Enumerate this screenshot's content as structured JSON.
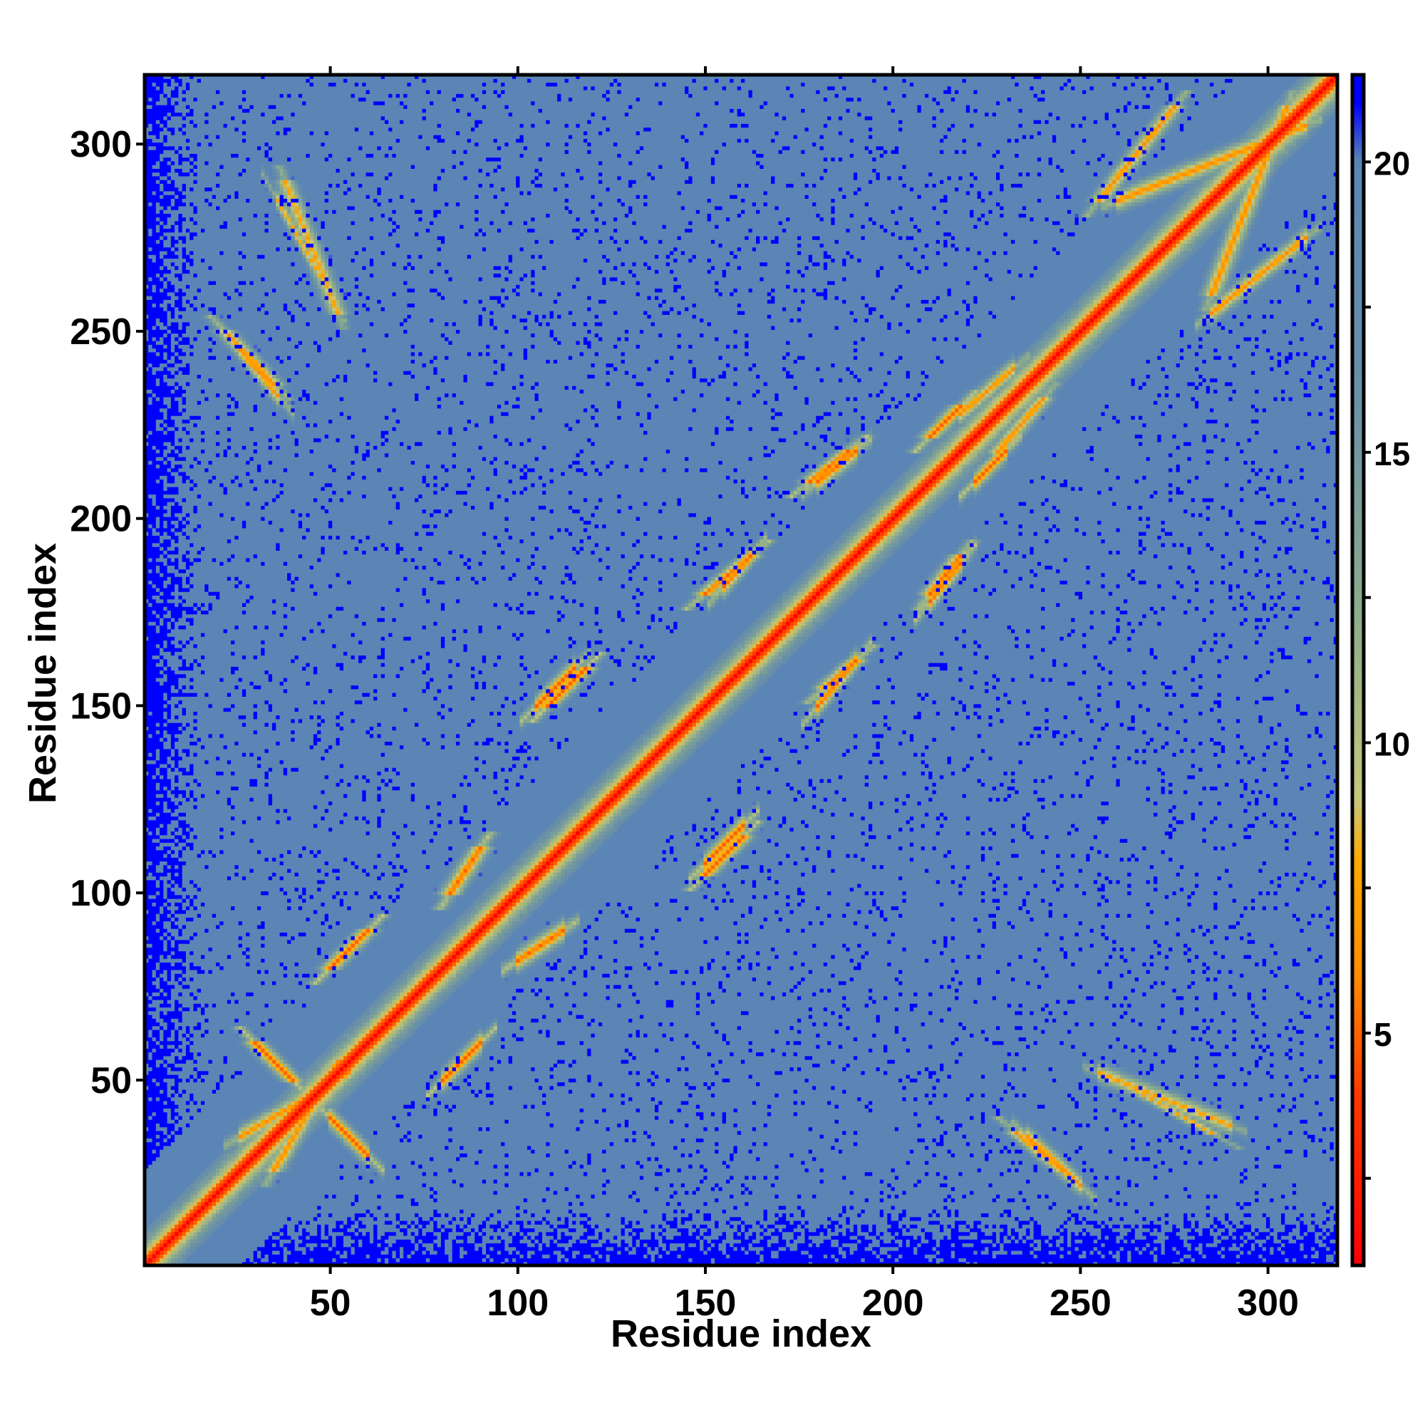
{
  "chart_data": {
    "type": "heatmap",
    "title": "",
    "xlabel": "Residue index",
    "ylabel": "Residue index",
    "n_residues": 318,
    "xlim": [
      0.5,
      318.5
    ],
    "ylim": [
      0.5,
      318.5
    ],
    "x_ticks": [
      50,
      100,
      150,
      200,
      250,
      300
    ],
    "x_tick_labels": [
      "50",
      "100",
      "150",
      "200",
      "250",
      "300"
    ],
    "y_ticks": [
      50,
      100,
      150,
      200,
      250,
      300
    ],
    "y_tick_labels": [
      "50",
      "100",
      "150",
      "200",
      "250",
      "300"
    ],
    "top_ticks": [
      50,
      100,
      150,
      200,
      250,
      300
    ],
    "colorbar": {
      "range": [
        1,
        21.5
      ],
      "ticks": [
        5,
        10,
        15,
        20
      ],
      "tick_labels": [
        "5",
        "10",
        "15",
        "20"
      ],
      "color_stops": [
        {
          "value": 1,
          "color": "#ff0000"
        },
        {
          "value": 4,
          "color": "#ff3a00"
        },
        {
          "value": 6,
          "color": "#ff8c00"
        },
        {
          "value": 8,
          "color": "#ffaa00"
        },
        {
          "value": 9,
          "color": "#c7c77a"
        },
        {
          "value": 12,
          "color": "#8fae8a"
        },
        {
          "value": 16,
          "color": "#6a90a8"
        },
        {
          "value": 20,
          "color": "#5b85b5"
        },
        {
          "value": 21,
          "color": "#0000ff"
        }
      ]
    },
    "grid": false,
    "diagonal_value": 1,
    "contact_bands": [
      {
        "i": [
          26,
          36
        ],
        "j": [
          233,
          245
        ],
        "dir": "anti",
        "value": 6
      },
      {
        "i": [
          26,
          55
        ],
        "j": [
          35,
          52
        ],
        "dir": "par",
        "value": 6
      },
      {
        "i": [
          50,
          60
        ],
        "j": [
          30,
          40
        ],
        "dir": "anti",
        "value": 5
      },
      {
        "i": [
          80,
          90
        ],
        "j": [
          50,
          60
        ],
        "dir": "par",
        "value": 5
      },
      {
        "i": [
          100,
          112
        ],
        "j": [
          82,
          90
        ],
        "dir": "par",
        "value": 5
      },
      {
        "i": [
          150,
          160
        ],
        "j": [
          108,
          118
        ],
        "dir": "par",
        "value": 5
      },
      {
        "i": [
          105,
          115
        ],
        "j": [
          150,
          160
        ],
        "dir": "par",
        "value": 5
      },
      {
        "i": [
          180,
          190
        ],
        "j": [
          150,
          162
        ],
        "dir": "par",
        "value": 5
      },
      {
        "i": [
          210,
          218
        ],
        "j": [
          178,
          188
        ],
        "dir": "par",
        "value": 5
      },
      {
        "i": [
          180,
          190
        ],
        "j": [
          210,
          218
        ],
        "dir": "par",
        "value": 5
      },
      {
        "i": [
          155,
          162
        ],
        "j": [
          182,
          190
        ],
        "dir": "par",
        "value": 5
      },
      {
        "i": [
          218,
          232
        ],
        "j": [
          228,
          240
        ],
        "dir": "par",
        "value": 6
      },
      {
        "i": [
          222,
          230
        ],
        "j": [
          210,
          218
        ],
        "dir": "par",
        "value": 5
      },
      {
        "i": [
          236,
          250
        ],
        "j": [
          22,
          35
        ],
        "dir": "anti",
        "value": 6
      },
      {
        "i": [
          255,
          290
        ],
        "j": [
          38,
          52
        ],
        "dir": "anti",
        "value": 7
      },
      {
        "i": [
          260,
          310
        ],
        "j": [
          285,
          305
        ],
        "dir": "par",
        "value": 6
      },
      {
        "i": [
          285,
          310
        ],
        "j": [
          255,
          275
        ],
        "dir": "par",
        "value": 6
      },
      {
        "i": [
          36,
          50
        ],
        "j": [
          260,
          285
        ],
        "dir": "anti",
        "value": 7
      }
    ],
    "void_regions": [
      {
        "x": [
          1,
          15
        ],
        "y": [
          1,
          318
        ],
        "value": 21
      },
      {
        "x": [
          1,
          318
        ],
        "y": [
          1,
          15
        ],
        "value": 21
      }
    ]
  }
}
